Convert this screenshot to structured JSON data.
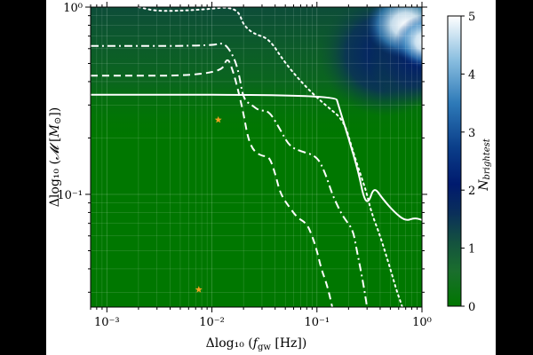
{
  "chart_data": {
    "type": "heatmap",
    "xlabel": "Δlog₁₀ (f_gw [Hz])",
    "ylabel": "Δlog₁₀ (𝓜 [M⊙])",
    "xlabel_parts": {
      "prefix": "Δlog₁₀ (",
      "symbol": "f",
      "sub": "gw",
      "suffix": " [Hz])"
    },
    "ylabel_parts": {
      "prefix": "Δlog₁₀ (",
      "symbol": "𝓜",
      "bracket_open": " [",
      "unit": "M",
      "unit_sub": "⊙",
      "suffix": "])"
    },
    "x_scale": "log",
    "y_scale": "log",
    "xlim": [
      0.0007,
      1.0
    ],
    "ylim": [
      0.025,
      1.0
    ],
    "x_ticks": [
      {
        "value": 0.001,
        "label": "10⁻³"
      },
      {
        "value": 0.01,
        "label": "10⁻²"
      },
      {
        "value": 0.1,
        "label": "10⁻¹"
      },
      {
        "value": 1,
        "label": "10⁰"
      }
    ],
    "y_ticks": [
      {
        "value": 0.1,
        "label": "10⁻¹"
      },
      {
        "value": 1,
        "label": "10⁰"
      }
    ],
    "grid": true,
    "colorbar": {
      "label_symbol": "N",
      "label_sub": "brightest",
      "range": [
        0,
        5
      ],
      "ticks": [
        {
          "value": 0,
          "label": "0"
        },
        {
          "value": 1,
          "label": "1"
        },
        {
          "value": 2,
          "label": "2"
        },
        {
          "value": 3,
          "label": "3"
        },
        {
          "value": 4,
          "label": "4"
        },
        {
          "value": 5,
          "label": "5"
        }
      ],
      "colors": [
        "#007700",
        "#1f6e3a",
        "#0a3d5e",
        "#001a6e",
        "#4d94c8",
        "#ffffff"
      ]
    },
    "heatmap_blob": {
      "description_points": [
        {
          "x": 0.33,
          "y": 0.35,
          "value": 2.2
        },
        {
          "x": 0.45,
          "y": 0.45,
          "value": 3.5
        },
        {
          "x": 0.5,
          "y": 0.7,
          "value": 4.5
        },
        {
          "x": 0.7,
          "y": 0.9,
          "value": 5.0
        },
        {
          "x": 0.9,
          "y": 0.6,
          "value": 4.6
        }
      ]
    },
    "contours": [
      {
        "style": "solid",
        "points": [
          [
            0.0007,
            0.34
          ],
          [
            0.15,
            0.34
          ],
          [
            0.16,
            0.3
          ],
          [
            0.2,
            0.2
          ],
          [
            0.25,
            0.13
          ],
          [
            0.28,
            0.095
          ],
          [
            0.31,
            0.09
          ],
          [
            0.35,
            0.11
          ],
          [
            0.42,
            0.095
          ],
          [
            0.55,
            0.08
          ],
          [
            0.7,
            0.072
          ],
          [
            0.85,
            0.075
          ],
          [
            1.0,
            0.073
          ]
        ]
      },
      {
        "style": "dotted",
        "points": [
          [
            0.002,
            1.0
          ],
          [
            0.003,
            0.95
          ],
          [
            0.006,
            0.96
          ],
          [
            0.01,
            0.98
          ],
          [
            0.014,
            1.0
          ],
          [
            0.018,
            0.95
          ],
          [
            0.02,
            0.8
          ],
          [
            0.025,
            0.72
          ],
          [
            0.035,
            0.68
          ],
          [
            0.05,
            0.5
          ],
          [
            0.08,
            0.37
          ],
          [
            0.12,
            0.3
          ],
          [
            0.18,
            0.25
          ],
          [
            0.22,
            0.17
          ],
          [
            0.27,
            0.12
          ],
          [
            0.3,
            0.1
          ],
          [
            0.33,
            0.08
          ],
          [
            0.4,
            0.06
          ],
          [
            0.5,
            0.04
          ],
          [
            0.58,
            0.03
          ],
          [
            0.65,
            0.025
          ]
        ]
      },
      {
        "style": "dashdot",
        "points": [
          [
            0.0007,
            0.62
          ],
          [
            0.01,
            0.62
          ],
          [
            0.013,
            0.65
          ],
          [
            0.016,
            0.55
          ],
          [
            0.018,
            0.45
          ],
          [
            0.02,
            0.32
          ],
          [
            0.024,
            0.3
          ],
          [
            0.028,
            0.28
          ],
          [
            0.035,
            0.28
          ],
          [
            0.045,
            0.22
          ],
          [
            0.055,
            0.18
          ],
          [
            0.07,
            0.17
          ],
          [
            0.1,
            0.16
          ],
          [
            0.12,
            0.13
          ],
          [
            0.14,
            0.1
          ],
          [
            0.16,
            0.085
          ],
          [
            0.18,
            0.075
          ],
          [
            0.22,
            0.065
          ],
          [
            0.24,
            0.05
          ],
          [
            0.26,
            0.04
          ],
          [
            0.28,
            0.032
          ],
          [
            0.3,
            0.025
          ]
        ]
      },
      {
        "style": "dashed",
        "points": [
          [
            0.0007,
            0.43
          ],
          [
            0.012,
            0.43
          ],
          [
            0.014,
            0.55
          ],
          [
            0.016,
            0.45
          ],
          [
            0.018,
            0.35
          ],
          [
            0.02,
            0.27
          ],
          [
            0.022,
            0.2
          ],
          [
            0.025,
            0.17
          ],
          [
            0.03,
            0.16
          ],
          [
            0.035,
            0.16
          ],
          [
            0.04,
            0.13
          ],
          [
            0.045,
            0.1
          ],
          [
            0.055,
            0.085
          ],
          [
            0.065,
            0.075
          ],
          [
            0.08,
            0.07
          ],
          [
            0.09,
            0.06
          ],
          [
            0.1,
            0.05
          ],
          [
            0.11,
            0.04
          ],
          [
            0.12,
            0.035
          ],
          [
            0.13,
            0.03
          ],
          [
            0.14,
            0.025
          ]
        ]
      }
    ],
    "markers": [
      {
        "symbol": "star",
        "color": "#f0a020",
        "x": 0.0115,
        "y": 0.25
      },
      {
        "symbol": "star",
        "color": "#f0a020",
        "x": 0.0075,
        "y": 0.031
      }
    ]
  }
}
